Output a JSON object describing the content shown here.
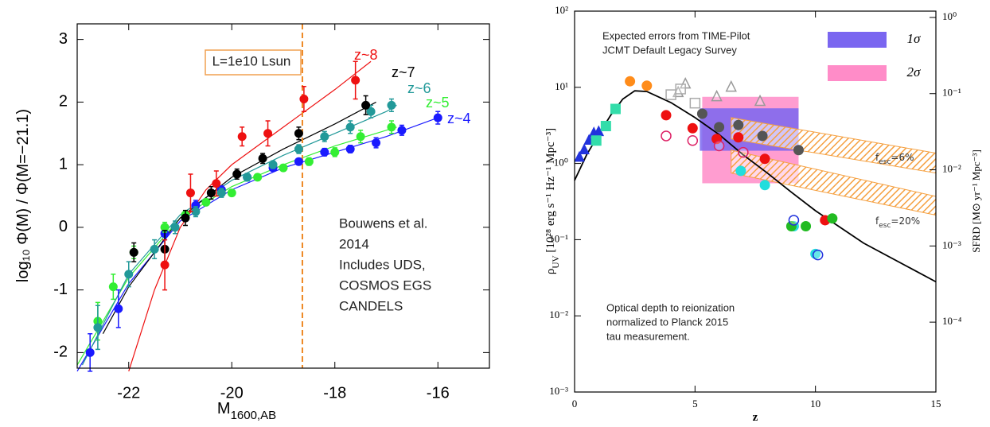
{
  "chart_data": [
    {
      "type": "scatter",
      "xlabel": [
        {
          "t": "M"
        },
        {
          "t": "1600,AB",
          "sub": true
        }
      ],
      "ylabel": [
        {
          "t": "log₁₀ Φ(M) / Φ(M=−21.1)"
        }
      ],
      "xlim": [
        -23,
        -15
      ],
      "ylim": [
        -2.25,
        3.25
      ],
      "xticks": [
        -22,
        -20,
        -18,
        -16
      ],
      "yticks": [
        -2,
        -1,
        0,
        1,
        2,
        3
      ],
      "vline": {
        "x": -18.63,
        "color": "#ee8822"
      },
      "annotations": [
        {
          "lines": [
            "L=1e10 Lsun"
          ],
          "box": "#f0a050"
        },
        {
          "lines": [
            "Bouwens et al.",
            "2014",
            "Includes UDS,",
            "COSMOS EGS",
            "CANDELS"
          ]
        }
      ],
      "series": [
        {
          "name": "z~4",
          "color": "#1a1aff",
          "x": [
            -22.75,
            -22.2,
            -21.3,
            -20.7,
            -20.2,
            -19.7,
            -19.2,
            -18.7,
            -18.2,
            -17.7,
            -17.2,
            -16.7,
            -16.0
          ],
          "values": [
            -2.0,
            -1.3,
            -0.1,
            0.35,
            0.6,
            0.8,
            0.95,
            1.05,
            1.2,
            1.25,
            1.35,
            1.55,
            1.75
          ],
          "errors": [
            0.3,
            0.3,
            0.1,
            0.08,
            0.06,
            0.05,
            0.05,
            0.05,
            0.06,
            0.06,
            0.08,
            0.08,
            0.1
          ],
          "fit": {
            "x": [
              -23,
              -22,
              -21,
              -20,
              -19,
              -18,
              -17,
              -16
            ],
            "values": [
              -2.3,
              -0.9,
              0.1,
              0.6,
              0.95,
              1.2,
              1.45,
              1.75
            ]
          }
        },
        {
          "name": "z~5",
          "color": "#33ee33",
          "x": [
            -22.6,
            -22.3,
            -21.9,
            -21.3,
            -20.9,
            -20.5,
            -20.0,
            -19.5,
            -19.0,
            -18.5,
            -18.0,
            -17.5,
            -16.9
          ],
          "values": [
            -1.5,
            -0.95,
            -0.4,
            0.0,
            0.2,
            0.4,
            0.55,
            0.8,
            0.95,
            1.05,
            1.2,
            1.45,
            1.6
          ],
          "errors": [
            0.3,
            0.2,
            0.1,
            0.08,
            0.06,
            0.05,
            0.05,
            0.05,
            0.05,
            0.06,
            0.07,
            0.1,
            0.1
          ],
          "fit": {
            "x": [
              -23,
              -22,
              -21,
              -20,
              -19,
              -18,
              -17,
              -16.8
            ],
            "values": [
              -2.2,
              -0.8,
              0.15,
              0.65,
              1.0,
              1.3,
              1.55,
              1.6
            ]
          }
        },
        {
          "name": "z~6",
          "color": "#229999",
          "x": [
            -22.6,
            -22.0,
            -21.5,
            -21.1,
            -20.7,
            -20.2,
            -19.7,
            -19.2,
            -18.7,
            -18.2,
            -17.7,
            -17.3,
            -16.9
          ],
          "values": [
            -1.6,
            -0.75,
            -0.35,
            0.0,
            0.25,
            0.55,
            0.8,
            1.0,
            1.25,
            1.45,
            1.6,
            1.85,
            1.95
          ],
          "errors": [
            0.35,
            0.2,
            0.15,
            0.1,
            0.08,
            0.07,
            0.06,
            0.06,
            0.07,
            0.08,
            0.1,
            0.1,
            0.1
          ],
          "fit": {
            "x": [
              -22.9,
              -22,
              -21,
              -20,
              -19,
              -18,
              -17,
              -16.8
            ],
            "values": [
              -2.2,
              -0.75,
              0.2,
              0.75,
              1.15,
              1.5,
              1.85,
              1.95
            ]
          }
        },
        {
          "name": "z~7",
          "color": "#000000",
          "x": [
            -21.9,
            -21.3,
            -20.9,
            -20.4,
            -19.9,
            -19.4,
            -18.7,
            -17.4
          ],
          "values": [
            -0.4,
            -0.35,
            0.15,
            0.55,
            0.85,
            1.1,
            1.5,
            1.95
          ],
          "errors": [
            0.15,
            0.3,
            0.12,
            0.1,
            0.08,
            0.08,
            0.1,
            0.15
          ],
          "fit": {
            "x": [
              -22.5,
              -22,
              -21,
              -20,
              -19,
              -18,
              -17.2
            ],
            "values": [
              -1.7,
              -0.95,
              0.15,
              0.8,
              1.25,
              1.65,
              2.0
            ]
          }
        },
        {
          "name": "z~8",
          "color": "#ee1111",
          "x": [
            -21.3,
            -20.8,
            -20.3,
            -19.8,
            -19.3,
            -18.6,
            -17.6
          ],
          "values": [
            -0.6,
            0.55,
            0.7,
            1.45,
            1.5,
            2.05,
            2.35
          ],
          "errors": [
            0.4,
            0.3,
            0.2,
            0.15,
            0.2,
            0.2,
            0.3
          ],
          "fit": {
            "x": [
              -22,
              -21.5,
              -21,
              -20.5,
              -20,
              -19,
              -18,
              -17.3
            ],
            "values": [
              -2.3,
              -1.0,
              0.0,
              0.6,
              1.0,
              1.6,
              2.2,
              2.65
            ]
          }
        }
      ]
    },
    {
      "type": "scatter",
      "ylog": true,
      "xlabel": [
        {
          "t": "z"
        }
      ],
      "ylabel": [
        {
          "t": "ρ"
        },
        {
          "t": "UV",
          "sub": true
        },
        {
          "t": " [10²⁸ erg s⁻¹ Hz⁻¹ Mpc⁻³]"
        }
      ],
      "y2label": [
        {
          "t": "SFRD [M⊙ yr⁻¹ Mpc⁻³]"
        }
      ],
      "xlim": [
        0,
        15
      ],
      "ylim": [
        0.001,
        100
      ],
      "y2lim": [
        1.21e-05,
        1.21
      ],
      "xticks": [
        0,
        5,
        10,
        15
      ],
      "yticks": [
        {
          "value": 0.001,
          "label": "10⁻³"
        },
        {
          "value": 0.01,
          "label": "10⁻²"
        },
        {
          "value": 0.1,
          "label": "10⁻¹"
        },
        {
          "value": 1,
          "label": "10⁰"
        },
        {
          "value": 10,
          "label": "10¹"
        },
        {
          "value": 100,
          "label": "10²"
        }
      ],
      "y2ticks": [
        {
          "value": 0.0001,
          "label": "10⁻⁴"
        },
        {
          "value": 0.001,
          "label": "10⁻³"
        },
        {
          "value": 0.01,
          "label": "10⁻²"
        },
        {
          "value": 0.1,
          "label": "10⁻¹"
        },
        {
          "value": 1,
          "label": "10⁰"
        }
      ],
      "annotations": [
        {
          "lines": [
            "Expected errors from TIME-Pilot",
            "JCMT Default Legacy Survey"
          ]
        },
        {
          "lines": [
            "Optical depth to reionization",
            "normalized to Planck 2015",
            "tau measurement."
          ]
        }
      ],
      "boxes": [
        {
          "name": "1σ",
          "color": "#7a66f0",
          "xrange": [
            5.2,
            9.3
          ],
          "yrange": [
            1.47,
            5.3
          ]
        },
        {
          "name": "2σ",
          "color": "#ff8cc8",
          "xrange": [
            5.3,
            9.3
          ],
          "yrange": [
            0.55,
            7.5
          ]
        }
      ],
      "bands": [
        {
          "label": [
            {
              "t": "f"
            },
            {
              "t": "esc",
              "sub": true
            },
            {
              "t": "=6%"
            }
          ],
          "color": "#f5a040",
          "x": [
            6.5,
            15
          ],
          "upper": [
            4.0,
            1.37
          ],
          "lower": [
            2.1,
            0.75
          ]
        },
        {
          "label": [
            {
              "t": "f"
            },
            {
              "t": "esc",
              "sub": true
            },
            {
              "t": "=20%"
            }
          ],
          "color": "#f5a040",
          "x": [
            6.5,
            15
          ],
          "upper": [
            1.5,
            0.37
          ],
          "lower": [
            0.75,
            0.21
          ]
        }
      ],
      "curve": {
        "color": "#000000",
        "x": [
          0,
          0.5,
          1,
          1.5,
          2,
          2.5,
          3,
          4,
          5,
          6,
          7,
          8,
          9,
          10,
          12,
          15
        ],
        "values": [
          0.6,
          1.3,
          2.4,
          4.3,
          7.0,
          9.0,
          8.8,
          6.3,
          4.0,
          2.4,
          1.3,
          0.75,
          0.42,
          0.24,
          0.09,
          0.028
        ]
      },
      "series": [
        {
          "color": "#2233dd",
          "marker": "triangle",
          "x": [
            0.2,
            0.4,
            0.6,
            0.8,
            1.0
          ],
          "values": [
            1.2,
            1.5,
            2.0,
            2.5,
            2.6
          ]
        },
        {
          "color": "#33ddaa",
          "marker": "square",
          "x": [
            0.9,
            1.3,
            1.7
          ],
          "values": [
            2.0,
            3.1,
            5.2
          ]
        },
        {
          "color": "#ff8c1a",
          "marker": "circle",
          "x": [
            2.3,
            3.0
          ],
          "values": [
            12,
            10.5
          ]
        },
        {
          "color": "#999999",
          "marker": "triangle",
          "open": true,
          "x": [
            4.3,
            4.6,
            5.9,
            6.5,
            7.7
          ],
          "values": [
            8.5,
            11,
            7.5,
            10,
            6.5
          ]
        },
        {
          "color": "#aaaaaa",
          "marker": "square",
          "open": true,
          "x": [
            4.0,
            4.4,
            5.0
          ],
          "values": [
            8,
            9.5,
            6.2
          ]
        },
        {
          "color": "#555555",
          "marker": "circle",
          "x": [
            5.3,
            6.0,
            6.8,
            7.8,
            9.3
          ],
          "values": [
            4.5,
            3.0,
            3.2,
            2.3,
            1.5
          ]
        },
        {
          "color": "#ee1111",
          "marker": "circle",
          "x": [
            3.8,
            4.9,
            5.9,
            6.8,
            7.9,
            10.4
          ],
          "values": [
            4.3,
            2.9,
            2.1,
            2.2,
            1.15,
            0.18
          ]
        },
        {
          "color": "#dd2266",
          "marker": "circle",
          "open": true,
          "x": [
            3.8,
            4.9,
            6.0,
            7.0
          ],
          "values": [
            2.3,
            2.0,
            1.7,
            1.4
          ]
        },
        {
          "color": "#22dddd",
          "marker": "circle",
          "x": [
            6.9,
            7.9,
            9.1,
            10.0
          ],
          "values": [
            0.8,
            0.52,
            0.15,
            0.065
          ]
        },
        {
          "color": "#22bb22",
          "marker": "circle",
          "x": [
            9.0,
            9.6,
            10.7
          ],
          "values": [
            0.15,
            0.15,
            0.19
          ]
        },
        {
          "color": "#2233dd",
          "marker": "circle",
          "open": true,
          "x": [
            9.1,
            10.1
          ],
          "values": [
            0.18,
            0.063
          ]
        }
      ]
    }
  ]
}
